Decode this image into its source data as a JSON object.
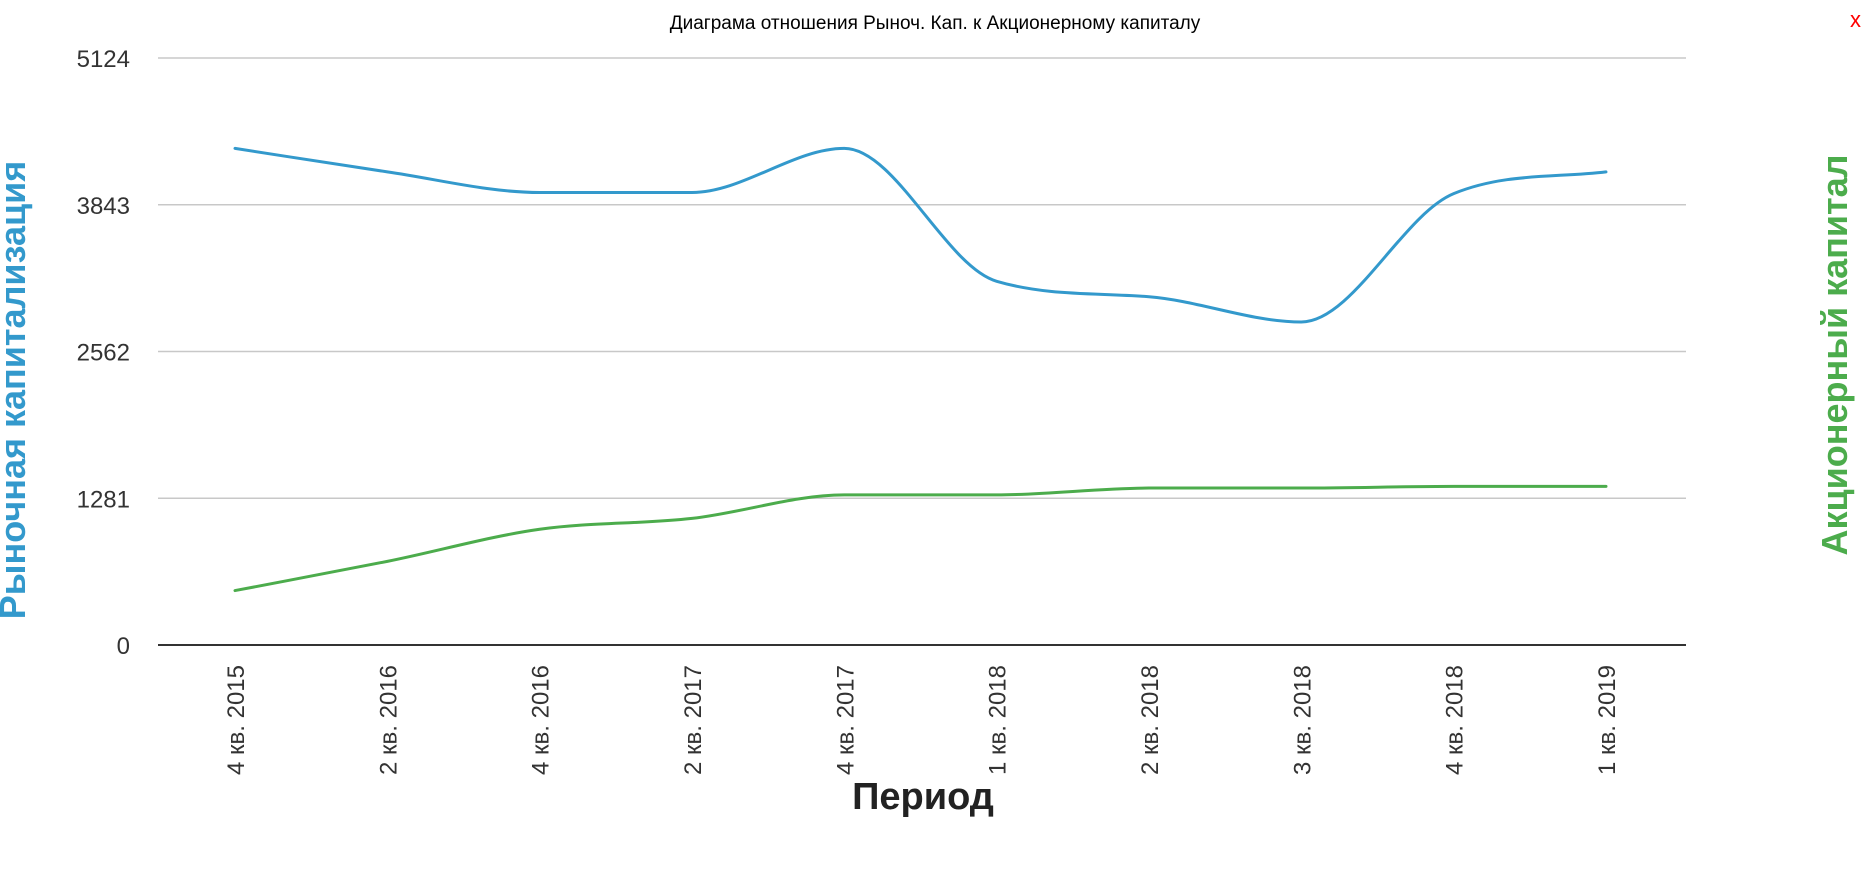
{
  "close_label": "x",
  "chart_data": {
    "type": "line",
    "title": "Диаграма отношения Рыноч. Кап. к Акционерному капиталу",
    "xlabel": "Период",
    "ylabel_left": "Рыночная капитализация",
    "ylabel_right": "Акционерный капитал",
    "categories": [
      "4 кв. 2015",
      "2 кв. 2016",
      "4 кв. 2016",
      "2 кв. 2017",
      "4 кв. 2017",
      "1 кв. 2018",
      "2 кв. 2018",
      "3 кв. 2018",
      "4 кв. 2018",
      "1 кв. 2019"
    ],
    "ylim": [
      0,
      5124
    ],
    "yticks": [
      0,
      1281,
      2562,
      3843,
      5124
    ],
    "grid": true,
    "series": [
      {
        "name": "Рыночная капитализация",
        "color": "#3399cc",
        "values": [
          4335,
          4130,
          3950,
          3950,
          4335,
          3175,
          3040,
          2820,
          3940,
          4130
        ]
      },
      {
        "name": "Акционерный капитал",
        "color": "#4cac4c",
        "values": [
          475,
          730,
          1010,
          1105,
          1310,
          1310,
          1370,
          1370,
          1385,
          1385
        ]
      }
    ],
    "colors": {
      "left_axis_label": "#3399cc",
      "right_axis_label": "#4cac4c",
      "close": "#ff0000",
      "grid": "#c8c8c8",
      "axis": "#333333"
    }
  }
}
